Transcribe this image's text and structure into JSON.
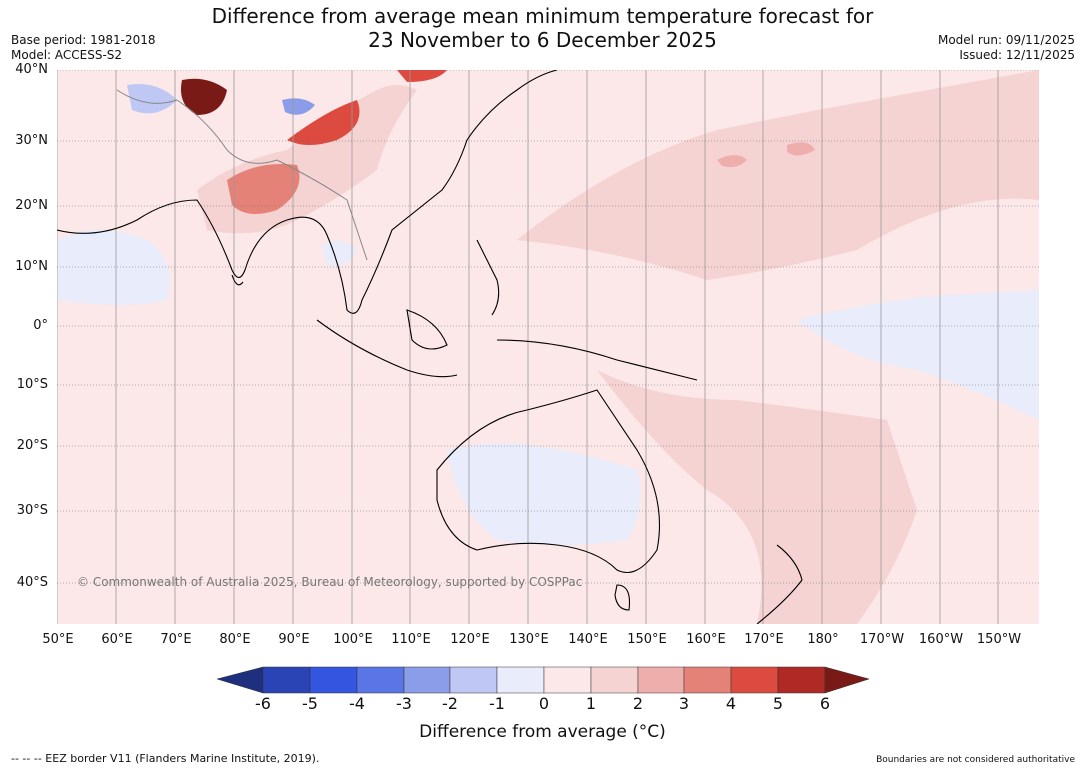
{
  "title": {
    "line1": "Difference from average mean minimum temperature forecast for",
    "line2": "23 November to 6 December 2025"
  },
  "meta": {
    "base_period": "Base period: 1981-2018",
    "model": "Model: ACCESS-S2",
    "model_run": "Model run: 09/11/2025",
    "issued": "Issued: 12/11/2025"
  },
  "axes": {
    "latitudes": [
      "40°N",
      "30°N",
      "20°N",
      "10°N",
      "0°",
      "10°S",
      "20°S",
      "30°S",
      "40°S"
    ],
    "longitudes": [
      "50°E",
      "60°E",
      "70°E",
      "80°E",
      "90°E",
      "100°E",
      "110°E",
      "120°E",
      "130°E",
      "140°E",
      "150°E",
      "160°E",
      "170°E",
      "180°",
      "170°W",
      "160°W",
      "150°W"
    ]
  },
  "copyright": "© Commonwealth of Australia 2025, Bureau of Meteorology, supported by COSPPac",
  "colorbar": {
    "ticks": [
      "-6",
      "-5",
      "-4",
      "-3",
      "-2",
      "-1",
      "0",
      "1",
      "2",
      "3",
      "4",
      "5",
      "6"
    ],
    "colors": [
      "#1e2f7d",
      "#2a44b5",
      "#3355e0",
      "#5a75e6",
      "#8b9de8",
      "#bfc8f4",
      "#e8ecfb",
      "#fce8e8",
      "#f5d3d3",
      "#eeaeac",
      "#e58278",
      "#dc4a40",
      "#b02a25",
      "#7a1a16"
    ],
    "label": "Difference from average (°C)"
  },
  "footer": {
    "eez": "-- -- -- EEZ border V11 (Flanders Marine Institute, 2019).",
    "boundaries": "Boundaries are not considered authoritative"
  }
}
